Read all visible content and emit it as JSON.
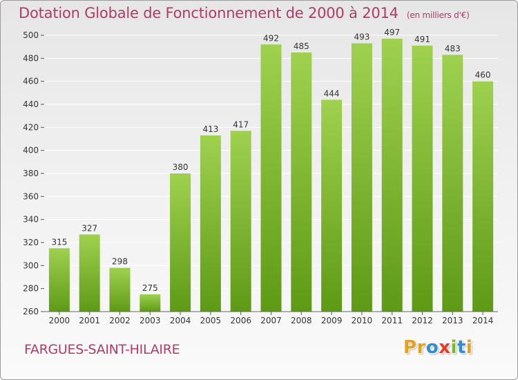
{
  "header": {
    "title": "Dotation Globale de Fonctionnement de 2000 à 2014",
    "unit": "(en milliers d'€)"
  },
  "footer": {
    "commune": "FARGUES-SAINT-HILAIRE",
    "logo": [
      "P",
      "r",
      "o",
      "x",
      "i",
      "t",
      "i"
    ]
  },
  "colors": {
    "title": "#b03a68",
    "bar_top": "#9fd14f",
    "bar_bottom": "#5e9a16",
    "grid": "#ffffff",
    "logo": [
      "#e2a21f",
      "#e2a21f",
      "#2f8ccd",
      "#e83a2a",
      "#7cb828",
      "#2f8ccd",
      "#e2a21f"
    ]
  },
  "chart_data": {
    "type": "bar",
    "title": "Dotation Globale de Fonctionnement de 2000 à 2014",
    "subtitle": "(en milliers d'€)",
    "xlabel": "",
    "ylabel": "",
    "categories": [
      "2000",
      "2001",
      "2002",
      "2003",
      "2004",
      "2005",
      "2006",
      "2007",
      "2008",
      "2009",
      "2010",
      "2011",
      "2012",
      "2013",
      "2014"
    ],
    "values": [
      315,
      327,
      298,
      275,
      380,
      413,
      417,
      492,
      485,
      444,
      493,
      497,
      491,
      483,
      460
    ],
    "data_labels": [
      "315",
      "327",
      "298",
      "275",
      "380",
      "413",
      "417",
      "492",
      "485",
      "444",
      "493",
      "497",
      "491",
      "483",
      "460"
    ],
    "ylim": [
      260,
      500
    ],
    "yticks": [
      "260",
      "280",
      "300",
      "320",
      "340",
      "360",
      "380",
      "400",
      "420",
      "440",
      "460",
      "480",
      "500"
    ],
    "grid": true,
    "legend": "none"
  }
}
